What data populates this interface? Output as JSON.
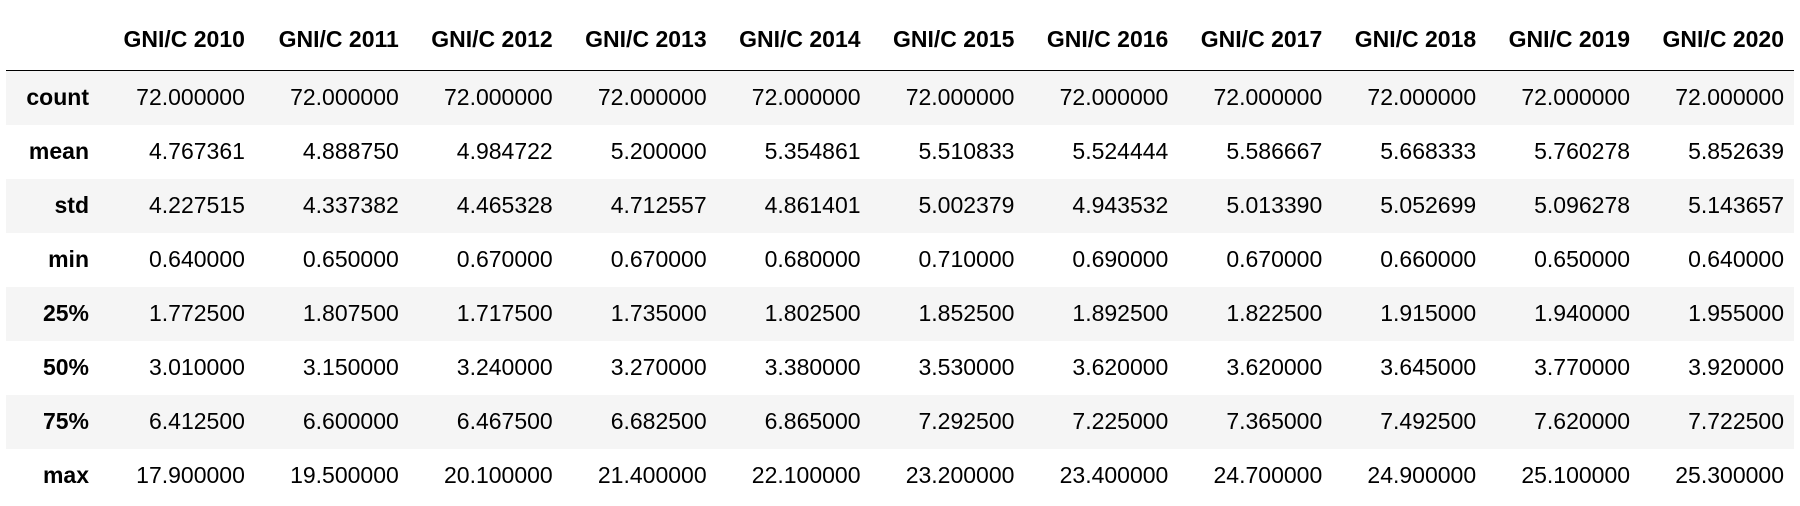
{
  "table": {
    "columns": [
      "GNI/C 2010",
      "GNI/C 2011",
      "GNI/C 2012",
      "GNI/C 2013",
      "GNI/C 2014",
      "GNI/C 2015",
      "GNI/C 2016",
      "GNI/C 2017",
      "GNI/C 2018",
      "GNI/C 2019",
      "GNI/C 2020"
    ],
    "rows": [
      {
        "label": "count",
        "values": [
          "72.000000",
          "72.000000",
          "72.000000",
          "72.000000",
          "72.000000",
          "72.000000",
          "72.000000",
          "72.000000",
          "72.000000",
          "72.000000",
          "72.000000"
        ]
      },
      {
        "label": "mean",
        "values": [
          "4.767361",
          "4.888750",
          "4.984722",
          "5.200000",
          "5.354861",
          "5.510833",
          "5.524444",
          "5.586667",
          "5.668333",
          "5.760278",
          "5.852639"
        ]
      },
      {
        "label": "std",
        "values": [
          "4.227515",
          "4.337382",
          "4.465328",
          "4.712557",
          "4.861401",
          "5.002379",
          "4.943532",
          "5.013390",
          "5.052699",
          "5.096278",
          "5.143657"
        ]
      },
      {
        "label": "min",
        "values": [
          "0.640000",
          "0.650000",
          "0.670000",
          "0.670000",
          "0.680000",
          "0.710000",
          "0.690000",
          "0.670000",
          "0.660000",
          "0.650000",
          "0.640000"
        ]
      },
      {
        "label": "25%",
        "values": [
          "1.772500",
          "1.807500",
          "1.717500",
          "1.735000",
          "1.802500",
          "1.852500",
          "1.892500",
          "1.822500",
          "1.915000",
          "1.940000",
          "1.955000"
        ]
      },
      {
        "label": "50%",
        "values": [
          "3.010000",
          "3.150000",
          "3.240000",
          "3.270000",
          "3.380000",
          "3.530000",
          "3.620000",
          "3.620000",
          "3.645000",
          "3.770000",
          "3.920000"
        ]
      },
      {
        "label": "75%",
        "values": [
          "6.412500",
          "6.600000",
          "6.467500",
          "6.682500",
          "6.865000",
          "7.292500",
          "7.225000",
          "7.365000",
          "7.492500",
          "7.620000",
          "7.722500"
        ]
      },
      {
        "label": "max",
        "values": [
          "17.900000",
          "19.500000",
          "20.100000",
          "21.400000",
          "22.100000",
          "23.200000",
          "23.400000",
          "24.700000",
          "24.900000",
          "25.100000",
          "25.300000"
        ]
      }
    ]
  }
}
